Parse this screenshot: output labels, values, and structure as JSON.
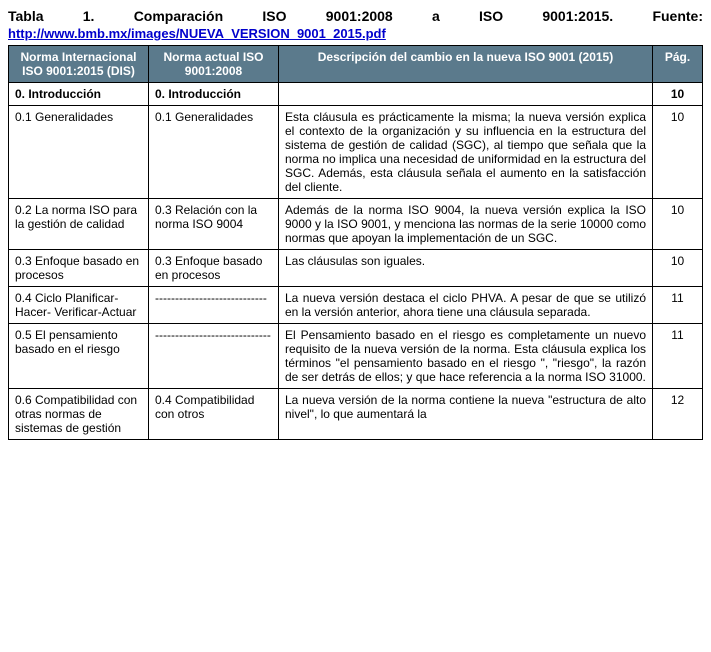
{
  "title": "Tabla 1. Comparación ISO 9001:2008 a ISO 9001:2015. Fuente:",
  "link": "http://www.bmb.mx/images/NUEVA_VERSION_9001_2015.pdf",
  "headers": {
    "col1": "Norma Internacional ISO 9001:2015 (DIS)",
    "col2": "Norma actual ISO 9001:2008",
    "col3": "Descripción del cambio en la nueva ISO 9001 (2015)",
    "col4": "Pág."
  },
  "section": {
    "c1": "0. Introducción",
    "c2": "0. Introducción",
    "c3": "",
    "c4": "10"
  },
  "rows": [
    {
      "c1": "0.1 Generalidades",
      "c2": "0.1 Generalidades",
      "c3": "Esta cláusula es prácticamente la misma; la nueva versión explica el contexto de la organización y su influencia en la estructura del sistema de gestión de calidad (SGC), al tiempo que señala que la norma no implica una necesidad de uniformidad en la estructura del SGC. Además, esta cláusula señala el aumento en la satisfacción del cliente.",
      "c4": "10"
    },
    {
      "c1": "0.2 La norma ISO para la gestión de calidad",
      "c2": "0.3 Relación con la norma ISO 9004",
      "c3": "Además de la norma ISO 9004, la nueva versión explica la ISO 9000 y la ISO 9001, y menciona las normas de la serie 10000 como normas que apoyan la implementación de un SGC.",
      "c4": "10"
    },
    {
      "c1": "0.3 Enfoque basado en procesos",
      "c2": "0.3 Enfoque basado en procesos",
      "c3": "Las cláusulas son iguales.",
      "c4": "10"
    },
    {
      "c1": "0.4 Ciclo Planificar-Hacer- Verificar-Actuar",
      "c2": "----------------------------",
      "c3": "La nueva versión destaca el ciclo PHVA. A pesar de que se utilizó en la versión anterior, ahora tiene una cláusula separada.",
      "c4": "11"
    },
    {
      "c1": "0.5 El pensamiento basado en el riesgo",
      "c2": "-----------------------------",
      "c3": "El Pensamiento basado en el riesgo es completamente un nuevo requisito de la nueva versión de la norma. Esta cláusula explica los términos \"el pensamiento basado en el riesgo \", \"riesgo\", la razón de ser detrás de ellos; y que hace referencia a la norma ISO 31000.",
      "c4": "11"
    },
    {
      "c1": "0.6 Compatibilidad con otras normas de sistemas de gestión",
      "c2": "0.4 Compatibilidad con otros",
      "c3": "La nueva versión de la norma contiene la nueva \"estructura de alto nivel\", lo que aumentará la",
      "c4": "12"
    }
  ]
}
